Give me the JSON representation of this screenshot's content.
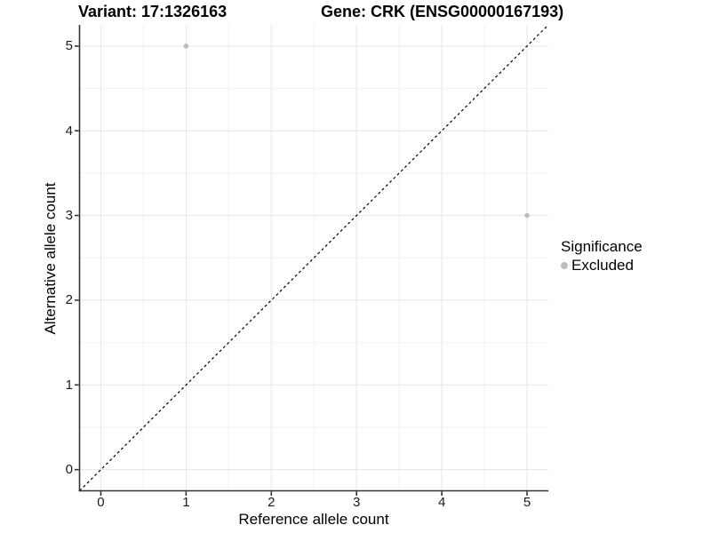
{
  "chart_data": {
    "type": "scatter",
    "title_left": "Variant: 17:1326163",
    "title_right": "Gene: CRK (ENSG00000167193)",
    "xlabel": "Reference allele count",
    "ylabel": "Alternative allele count",
    "x_ticks": [
      0,
      1,
      2,
      3,
      4,
      5
    ],
    "y_ticks": [
      0,
      1,
      2,
      3,
      4,
      5
    ],
    "x_minor_ticks": [
      0.5,
      1.5,
      2.5,
      3.5,
      4.5
    ],
    "y_minor_ticks": [
      0.5,
      1.5,
      2.5,
      3.5,
      4.5
    ],
    "xlim": [
      -0.25,
      5.25
    ],
    "ylim": [
      -0.25,
      5.25
    ],
    "grid": true,
    "legend_position": "right",
    "points": [
      {
        "x": 1,
        "y": 5,
        "significance": "Excluded"
      },
      {
        "x": 5,
        "y": 3,
        "significance": "Excluded"
      }
    ],
    "reference_line": {
      "kind": "identity",
      "linetype": "dashed",
      "color": "#000000"
    },
    "legend": {
      "title": "Significance",
      "items": [
        {
          "label": "Excluded",
          "color": "#bdbdbd"
        }
      ]
    },
    "colors": {
      "point": "#bdbdbd",
      "grid_major": "#e5e5e5",
      "grid_minor": "#f2f2f2",
      "axis": "#333333",
      "tick_text": "#1a1a1a"
    }
  }
}
